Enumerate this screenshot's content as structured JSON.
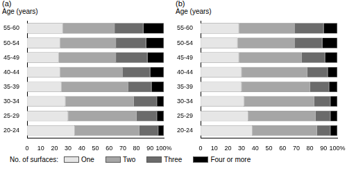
{
  "legend_title": "No. of surfaces:",
  "chart_data": [
    {
      "type": "bar",
      "title": "(a)",
      "y_label": "Age (years)",
      "orientation": "horizontal",
      "stacked": true,
      "grid": false,
      "legend": "bottom",
      "categories": [
        "55-60",
        "50-54",
        "45-49",
        "40-44",
        "35-39",
        "30-34",
        "25-29",
        "20-24"
      ],
      "xlim": [
        0,
        100
      ],
      "xticks": [
        0,
        10,
        20,
        30,
        40,
        50,
        60,
        70,
        80,
        90,
        {
          "value": 100,
          "label": "100%"
        }
      ],
      "series": [
        {
          "name": "One",
          "color": "#e6e6e6",
          "values": [
            26,
            24,
            23,
            24,
            25,
            28,
            30,
            35
          ]
        },
        {
          "name": "Two",
          "color": "#a6a6a6",
          "values": [
            38,
            41,
            42,
            46,
            49,
            50,
            50,
            47
          ]
        },
        {
          "name": "Three",
          "color": "#6b6b6b",
          "values": [
            21,
            22,
            23,
            20,
            17,
            17,
            15,
            14
          ]
        },
        {
          "name": "Four or more",
          "color": "#000000",
          "values": [
            15,
            13,
            12,
            10,
            9,
            5,
            5,
            4
          ]
        }
      ]
    },
    {
      "type": "bar",
      "title": "(b)",
      "y_label": "Age (years)",
      "orientation": "horizontal",
      "stacked": true,
      "grid": false,
      "legend": "bottom",
      "categories": [
        "55-60",
        "50-54",
        "45-49",
        "40-44",
        "35-39",
        "30-34",
        "25-29",
        "20-24"
      ],
      "xlim": [
        0,
        100
      ],
      "xticks": [
        0,
        10,
        20,
        30,
        40,
        50,
        60,
        70,
        80,
        90,
        {
          "value": 100,
          "label": "100%"
        }
      ],
      "series": [
        {
          "name": "One",
          "color": "#e6e6e6",
          "values": [
            28,
            27,
            28,
            30,
            30,
            32,
            35,
            38
          ]
        },
        {
          "name": "Two",
          "color": "#a6a6a6",
          "values": [
            41,
            42,
            46,
            48,
            50,
            51,
            49,
            47
          ]
        },
        {
          "name": "Three",
          "color": "#6b6b6b",
          "values": [
            21,
            20,
            17,
            15,
            14,
            12,
            11,
            10
          ]
        },
        {
          "name": "Four or more",
          "color": "#000000",
          "values": [
            10,
            11,
            9,
            7,
            6,
            5,
            5,
            5
          ]
        }
      ]
    }
  ]
}
